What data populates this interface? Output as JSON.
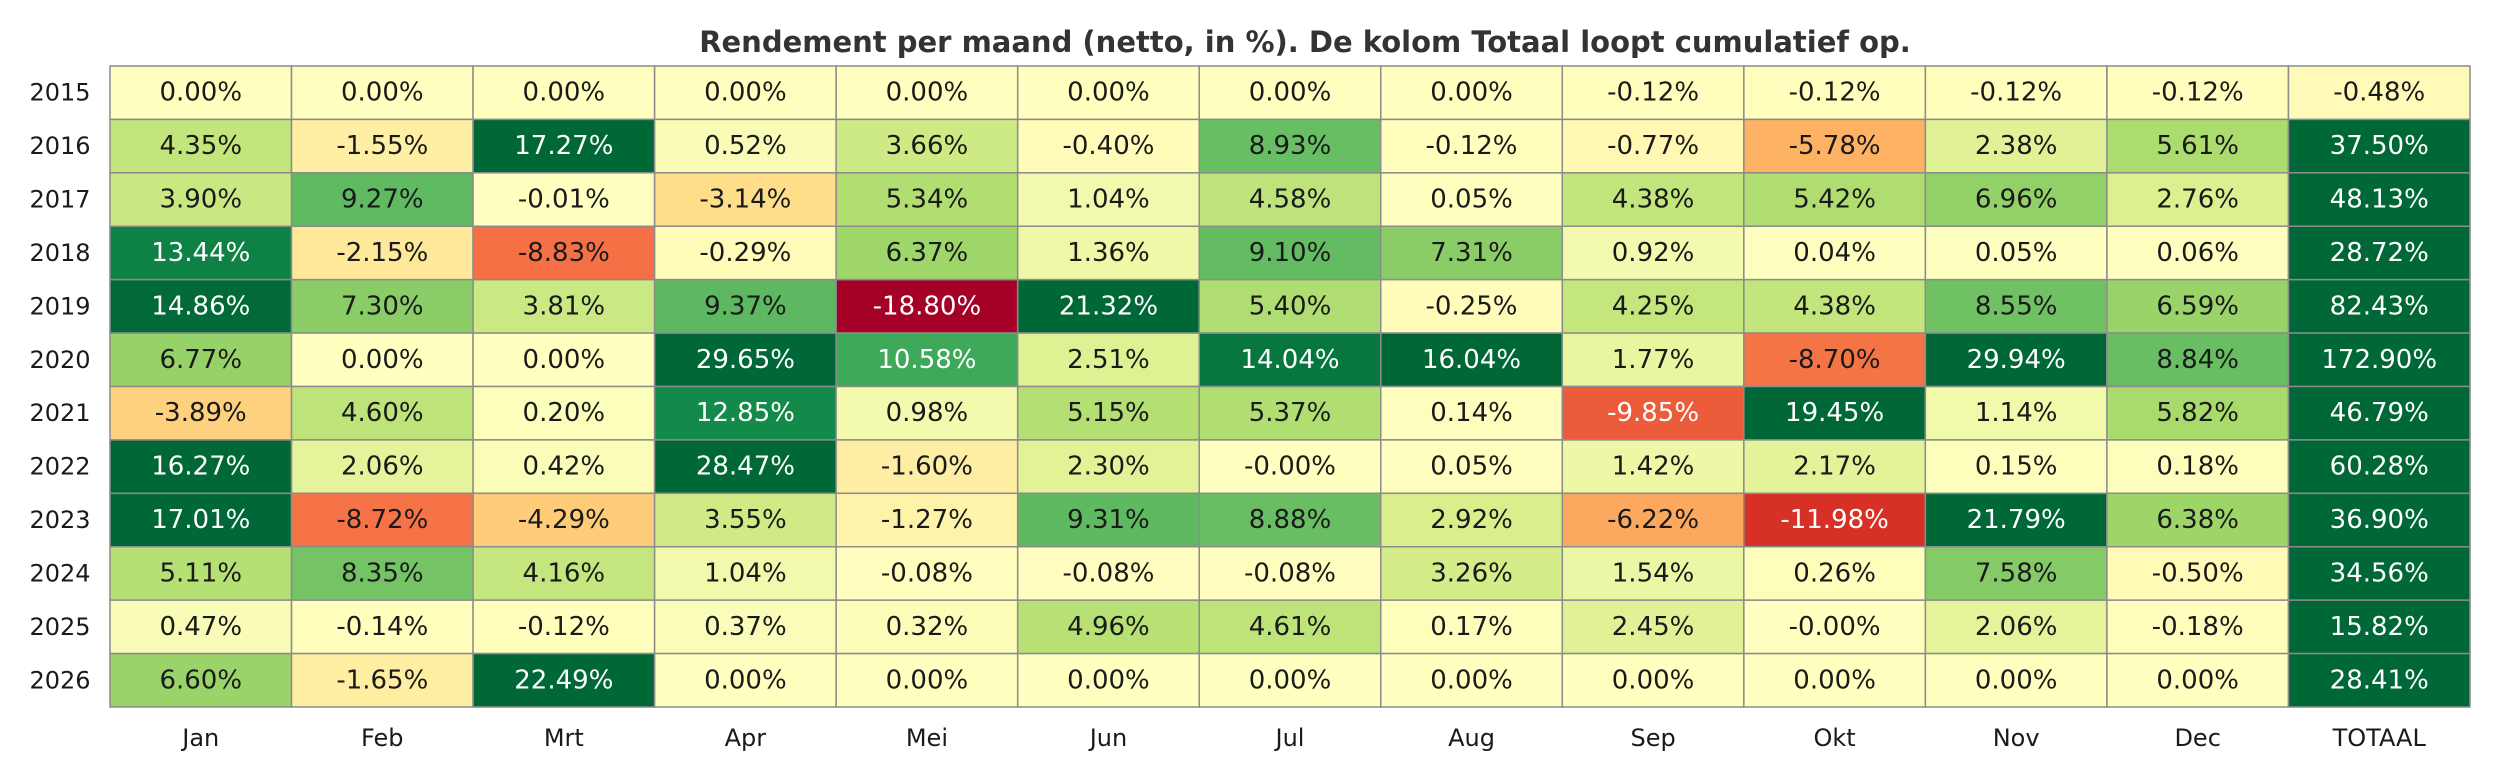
{
  "chart_data": {
    "type": "heatmap",
    "title": "Rendement per maand (netto, in %). De kolom Totaal loopt cumulatief op.",
    "columns": [
      "Jan",
      "Feb",
      "Mrt",
      "Apr",
      "Mei",
      "Jun",
      "Jul",
      "Aug",
      "Sep",
      "Okt",
      "Nov",
      "Dec",
      "TOTAAL"
    ],
    "rows": [
      "2015",
      "2016",
      "2017",
      "2018",
      "2019",
      "2020",
      "2021",
      "2022",
      "2023",
      "2024",
      "2025",
      "2026"
    ],
    "values": [
      [
        0.0,
        0.0,
        0.0,
        0.0,
        0.0,
        0.0,
        0.0,
        0.0,
        -0.12,
        -0.12,
        -0.12,
        -0.12,
        -0.48
      ],
      [
        4.35,
        -1.55,
        17.27,
        0.52,
        3.66,
        -0.4,
        8.93,
        -0.12,
        -0.77,
        -5.78,
        2.38,
        5.61,
        37.5
      ],
      [
        3.9,
        9.27,
        -0.01,
        -3.14,
        5.34,
        1.04,
        4.58,
        0.05,
        4.38,
        5.42,
        6.96,
        2.76,
        48.13
      ],
      [
        13.44,
        -2.15,
        -8.83,
        -0.29,
        6.37,
        1.36,
        9.1,
        7.31,
        0.92,
        0.04,
        0.05,
        0.06,
        28.72
      ],
      [
        14.86,
        7.3,
        3.81,
        9.37,
        -18.8,
        21.32,
        5.4,
        -0.25,
        4.25,
        4.38,
        8.55,
        6.59,
        82.43
      ],
      [
        6.77,
        0.0,
        0.0,
        29.65,
        10.58,
        2.51,
        14.04,
        16.04,
        1.77,
        -8.7,
        29.94,
        8.84,
        172.9
      ],
      [
        -3.89,
        4.6,
        0.2,
        12.85,
        0.98,
        5.15,
        5.37,
        0.14,
        -9.85,
        19.45,
        1.14,
        5.82,
        46.79
      ],
      [
        16.27,
        2.06,
        0.42,
        28.47,
        -1.6,
        2.3,
        -0.0,
        0.05,
        1.42,
        2.17,
        0.15,
        0.18,
        60.28
      ],
      [
        17.01,
        -8.72,
        -4.29,
        3.55,
        -1.27,
        9.31,
        8.88,
        2.92,
        -6.22,
        -11.98,
        21.79,
        6.38,
        36.9
      ],
      [
        5.11,
        8.35,
        4.16,
        1.04,
        -0.08,
        -0.08,
        -0.08,
        3.26,
        1.54,
        0.26,
        7.58,
        -0.5,
        34.56
      ],
      [
        0.47,
        -0.14,
        -0.12,
        0.37,
        0.32,
        4.96,
        4.61,
        0.17,
        2.45,
        -0.0,
        2.06,
        -0.18,
        15.82
      ],
      [
        6.6,
        -1.65,
        22.49,
        0.0,
        0.0,
        0.0,
        0.0,
        0.0,
        0.0,
        0.0,
        0.0,
        0.0,
        28.41
      ]
    ],
    "unit": "%",
    "colormap": "RdYlGn",
    "color_range": [
      -15,
      15
    ],
    "legend": "none",
    "grid": true
  }
}
